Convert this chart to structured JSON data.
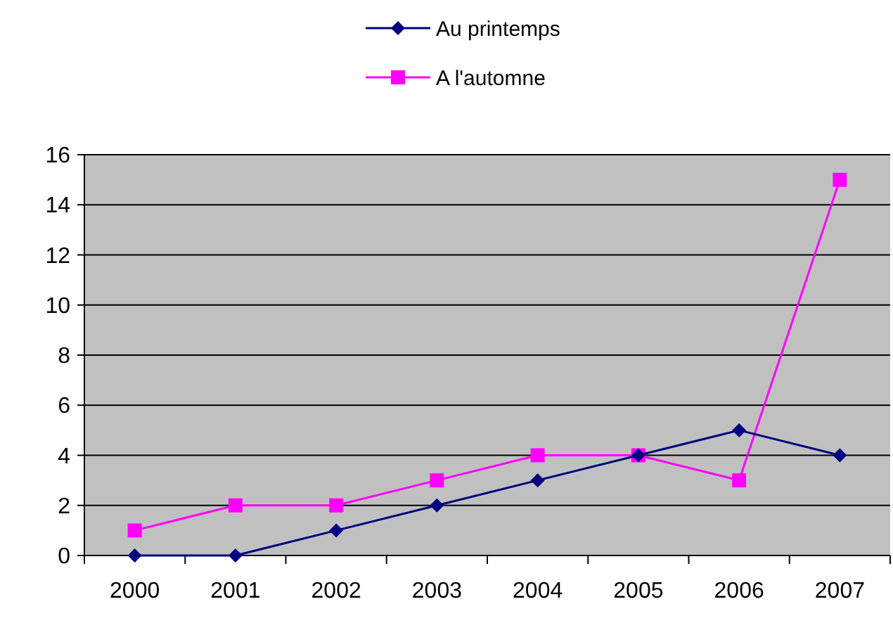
{
  "chart_data": {
    "type": "line",
    "categories": [
      "2000",
      "2001",
      "2002",
      "2003",
      "2004",
      "2005",
      "2006",
      "2007"
    ],
    "series": [
      {
        "name": "Au printemps",
        "color": "#000080",
        "marker": "diamond",
        "values": [
          0,
          0,
          1,
          2,
          3,
          4,
          5,
          4
        ]
      },
      {
        "name": "A l'automne",
        "color": "#ff00ff",
        "marker": "square",
        "values": [
          1,
          2,
          2,
          3,
          4,
          4,
          3,
          15
        ]
      }
    ],
    "ylim": [
      0,
      16
    ],
    "yticks": [
      0,
      2,
      4,
      6,
      8,
      10,
      12,
      14,
      16
    ],
    "grid": "y",
    "legend": "top"
  }
}
